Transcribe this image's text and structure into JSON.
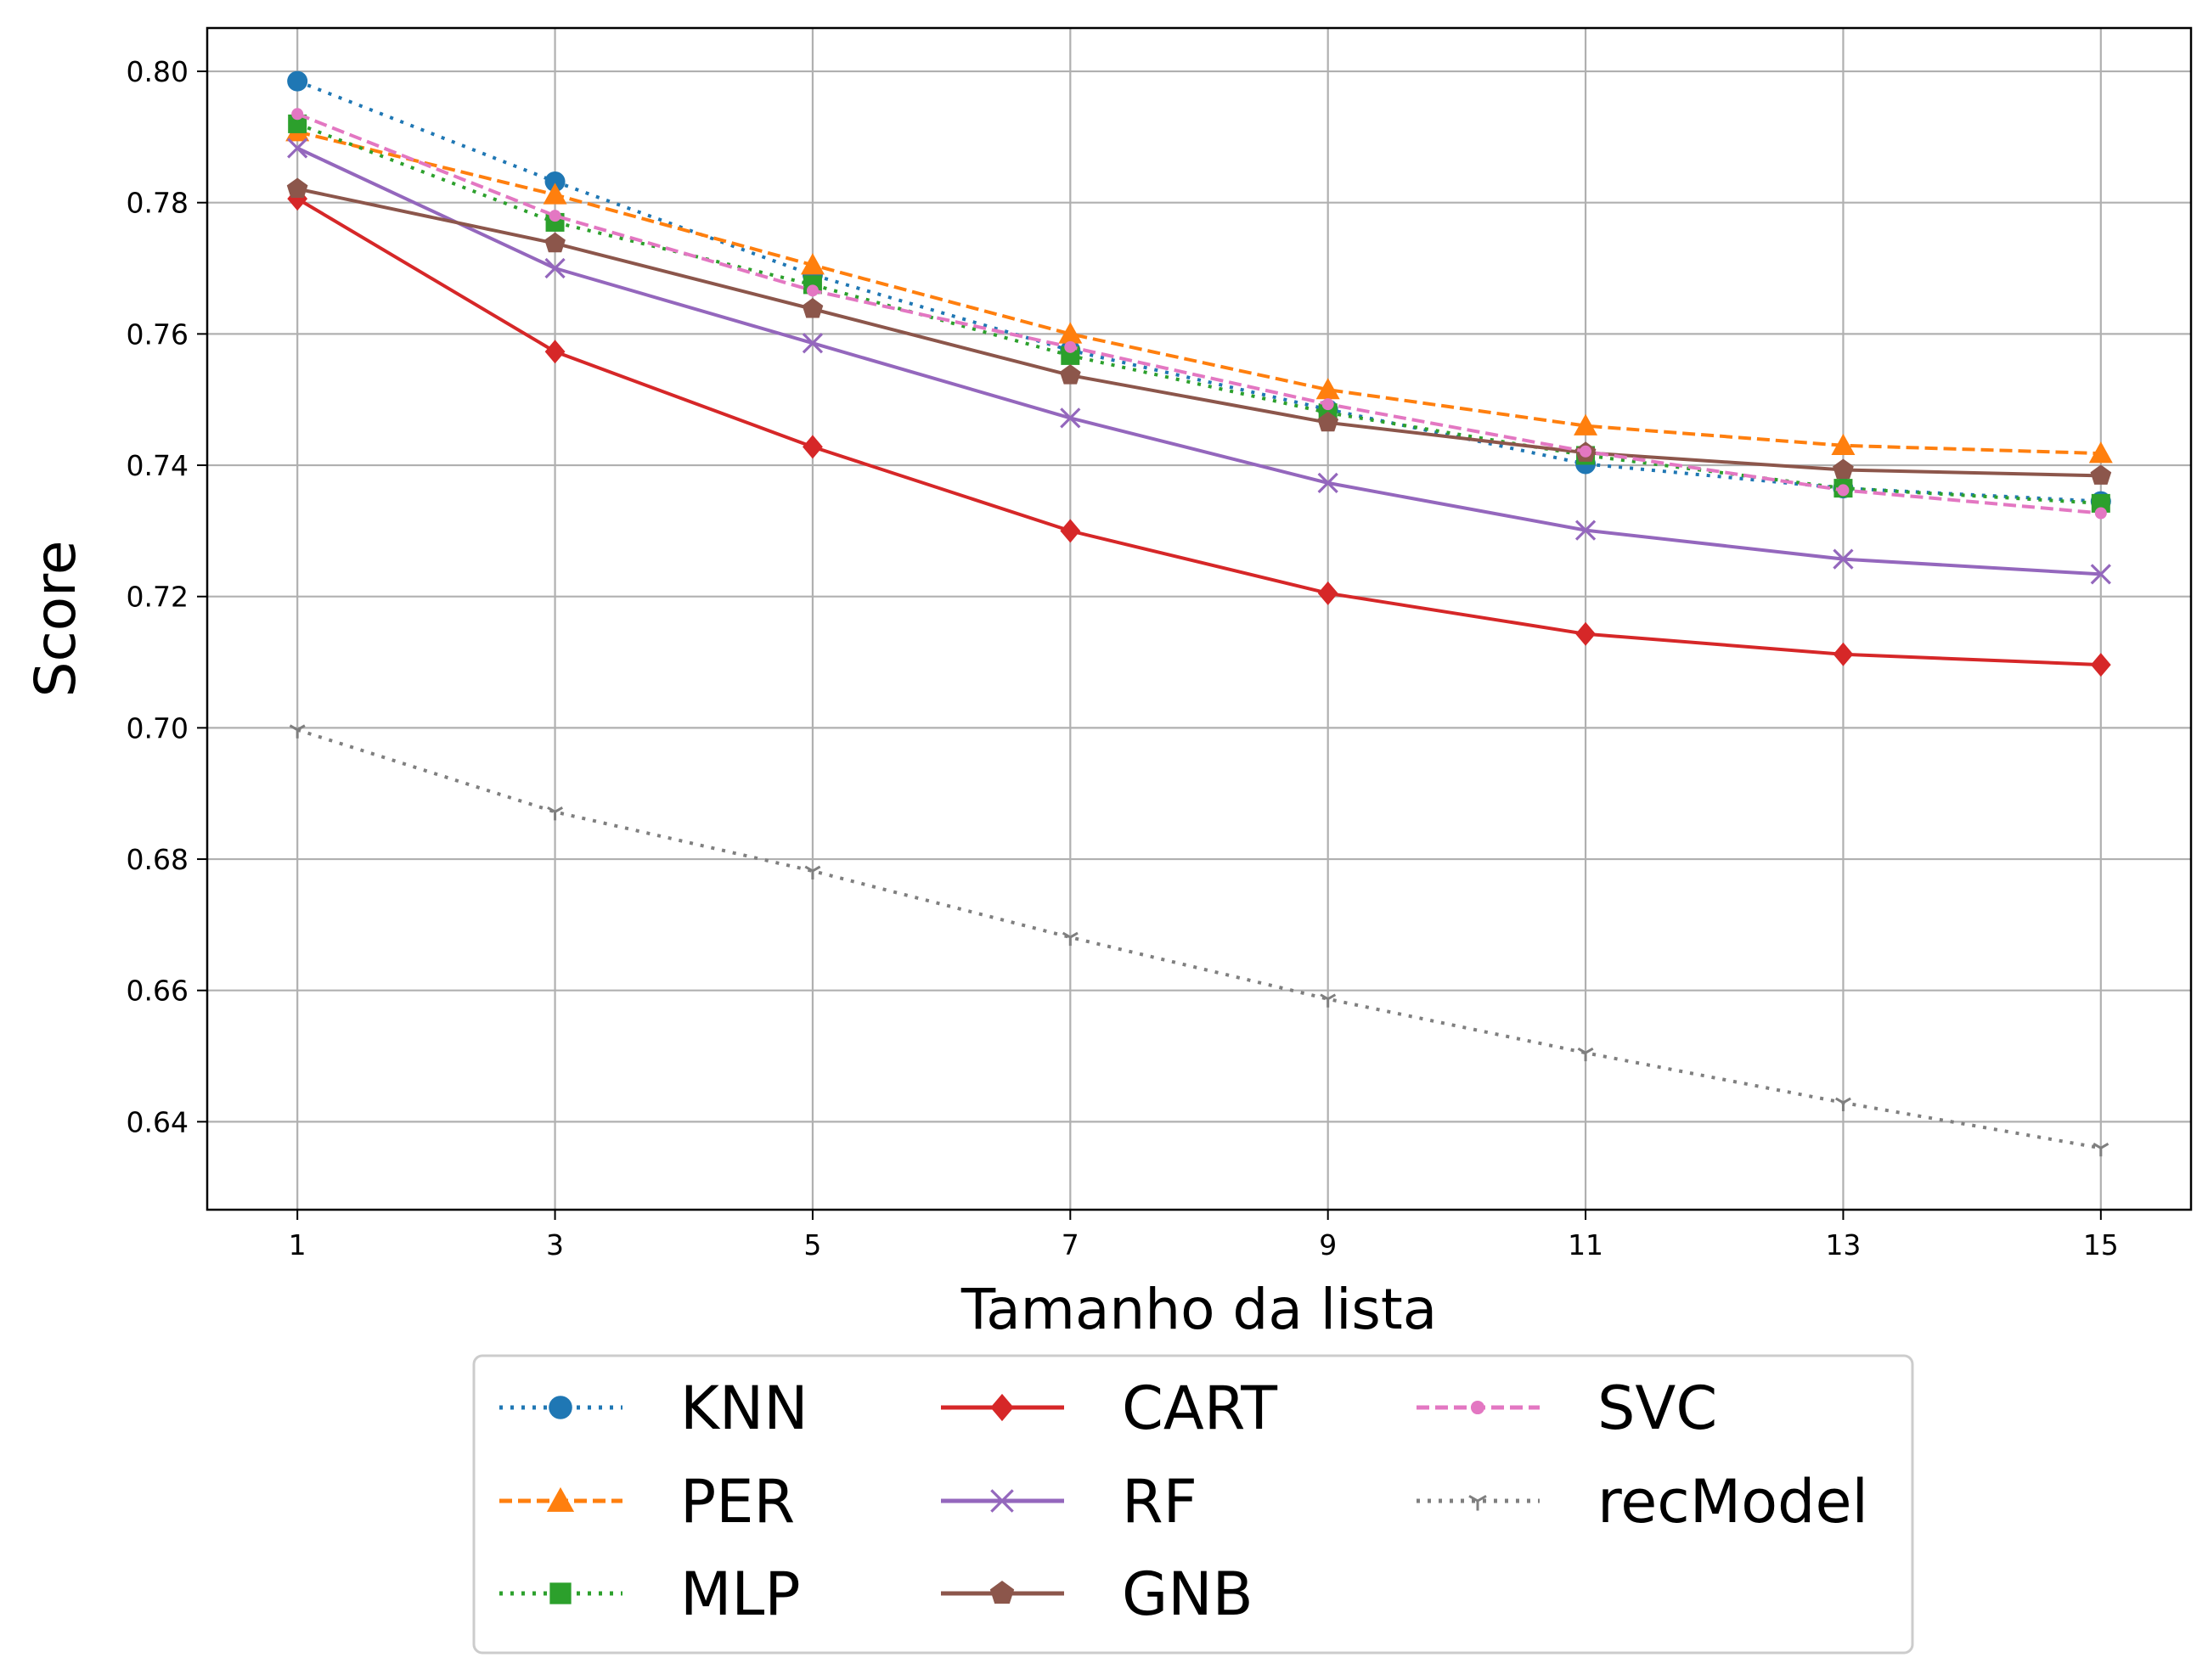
{
  "chart_data": {
    "type": "line",
    "xlabel": "Tamanho da lista",
    "ylabel": "Score",
    "x": [
      1,
      3,
      5,
      7,
      9,
      11,
      13,
      15
    ],
    "xticks": [
      "1",
      "3",
      "5",
      "7",
      "9",
      "11",
      "13",
      "15"
    ],
    "yticks": [
      "0.64",
      "0.66",
      "0.68",
      "0.70",
      "0.72",
      "0.74",
      "0.76",
      "0.78",
      "0.80"
    ],
    "ytick_values": [
      0.64,
      0.66,
      0.68,
      0.7,
      0.72,
      0.74,
      0.76,
      0.78,
      0.8
    ],
    "xlim": [
      0.3,
      15.7
    ],
    "ylim": [
      0.6266,
      0.8066
    ],
    "grid": true,
    "legend_position": "below plot, 3 columns",
    "series": [
      {
        "name": "KNN",
        "color": "#1f77b4",
        "dash": "dotted",
        "marker": "circle",
        "values": [
          0.7985,
          0.7832,
          0.769,
          0.7575,
          0.7485,
          0.7402,
          0.7365,
          0.7345
        ]
      },
      {
        "name": "PER",
        "color": "#ff7f0e",
        "dash": "dashed",
        "marker": "triangle",
        "values": [
          0.7908,
          0.7812,
          0.7705,
          0.76,
          0.7515,
          0.746,
          0.743,
          0.7418
        ]
      },
      {
        "name": "MLP",
        "color": "#2ca02c",
        "dash": "dotted",
        "marker": "square",
        "values": [
          0.792,
          0.777,
          0.7675,
          0.7567,
          0.748,
          0.7415,
          0.7365,
          0.7342
        ]
      },
      {
        "name": "CART",
        "color": "#d62728",
        "dash": "solid",
        "marker": "diamond",
        "values": [
          0.7806,
          0.7573,
          0.7428,
          0.73,
          0.7205,
          0.7143,
          0.7112,
          0.7096
        ]
      },
      {
        "name": "RF",
        "color": "#9467bd",
        "dash": "solid",
        "marker": "x",
        "values": [
          0.7883,
          0.77,
          0.7586,
          0.7472,
          0.7373,
          0.7301,
          0.7257,
          0.7234
        ]
      },
      {
        "name": "GNB",
        "color": "#8c564b",
        "dash": "solid",
        "marker": "pentagon",
        "values": [
          0.7821,
          0.7738,
          0.7638,
          0.7537,
          0.7465,
          0.7419,
          0.7393,
          0.7384
        ]
      },
      {
        "name": "SVC",
        "color": "#e377c2",
        "dash": "dashed",
        "marker": "point",
        "values": [
          0.7935,
          0.778,
          0.7666,
          0.758,
          0.7493,
          0.7421,
          0.7362,
          0.7327
        ]
      },
      {
        "name": "recModel",
        "color": "#7f7f7f",
        "dash": "dotted",
        "marker": "tri_down",
        "values": [
          0.6997,
          0.6872,
          0.6782,
          0.6681,
          0.6587,
          0.6505,
          0.6429,
          0.636
        ]
      }
    ]
  }
}
